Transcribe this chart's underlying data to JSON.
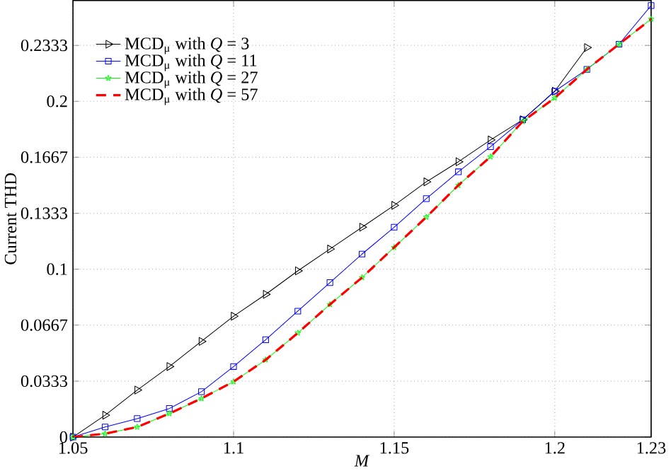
{
  "chart_data": {
    "type": "line",
    "xlabel": "*M*",
    "ylabel": "Current THD",
    "x": [
      1.05,
      1.06,
      1.07,
      1.08,
      1.09,
      1.1,
      1.11,
      1.12,
      1.13,
      1.14,
      1.15,
      1.16,
      1.17,
      1.18,
      1.19,
      1.2,
      1.21,
      1.22,
      1.23
    ],
    "series": [
      {
        "name": "MCD$_{μ}$ with *Q* = 3",
        "color": "#000000",
        "marker": "triangle",
        "line_style": "solid",
        "values": [
          0,
          0.013,
          0.028,
          0.042,
          0.057,
          0.072,
          0.085,
          0.099,
          0.112,
          0.125,
          0.138,
          0.152,
          0.164,
          0.177,
          0.189,
          0.206,
          0.232,
          null,
          null
        ]
      },
      {
        "name": "MCD$_{μ}$ with *Q* = 11",
        "color": "#0000ff",
        "marker": "square",
        "line_style": "solid",
        "values": [
          0,
          0.006,
          0.011,
          0.017,
          0.027,
          0.042,
          0.058,
          0.075,
          0.092,
          0.109,
          0.125,
          0.142,
          0.158,
          0.173,
          0.189,
          0.206,
          0.219,
          0.234,
          0.257
        ]
      },
      {
        "name": "MCD$_{μ}$ with *Q* = 27",
        "color": "#00ff00",
        "marker": "star",
        "line_style": "solid",
        "values": [
          0,
          0.002,
          0.006,
          0.014,
          0.023,
          0.033,
          0.046,
          0.062,
          0.079,
          0.095,
          0.113,
          0.131,
          0.15,
          0.167,
          0.188,
          0.202,
          0.219,
          0.234,
          0.249
        ]
      },
      {
        "name": "MCD$_{μ}$ with *Q* = 57",
        "color": "#ff0000",
        "marker": "none",
        "line_style": "dashed",
        "values": [
          0,
          0.002,
          0.006,
          0.014,
          0.023,
          0.033,
          0.046,
          0.062,
          0.079,
          0.095,
          0.113,
          0.131,
          0.15,
          0.167,
          0.188,
          0.202,
          0.219,
          0.234,
          0.249
        ]
      }
    ],
    "xlim": [
      1.05,
      1.23
    ],
    "ylim": [
      0,
      0.26
    ],
    "xticks": [
      1.05,
      1.1,
      1.15,
      1.2,
      1.23
    ],
    "yticks": [
      0,
      0.0333,
      0.0667,
      0.1,
      0.1333,
      0.1667,
      0.2,
      0.2333
    ],
    "grid": true,
    "legend": "top left"
  }
}
